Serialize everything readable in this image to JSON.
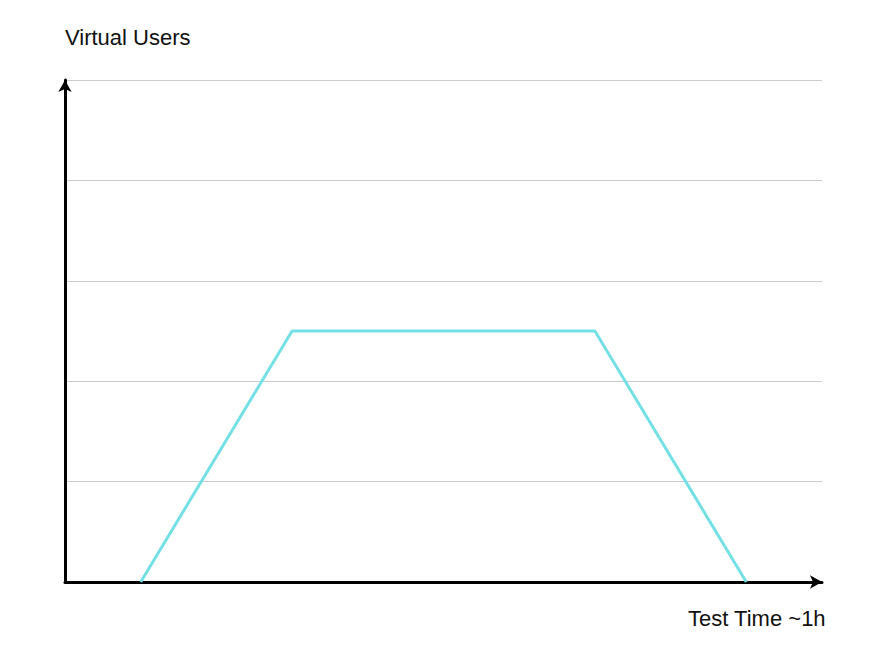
{
  "chart_data": {
    "type": "line",
    "y_label": "Virtual Users",
    "x_label": "Test Time ~1h",
    "x": [
      6,
      18,
      42,
      54
    ],
    "values": [
      0,
      2.5,
      2.5,
      0
    ],
    "color": "#74e0e6",
    "xlim": [
      0,
      60
    ],
    "ylim": [
      0,
      5
    ],
    "yticks": [
      0,
      1,
      2,
      3,
      4,
      5
    ],
    "grid": true,
    "tick_labels": false
  }
}
